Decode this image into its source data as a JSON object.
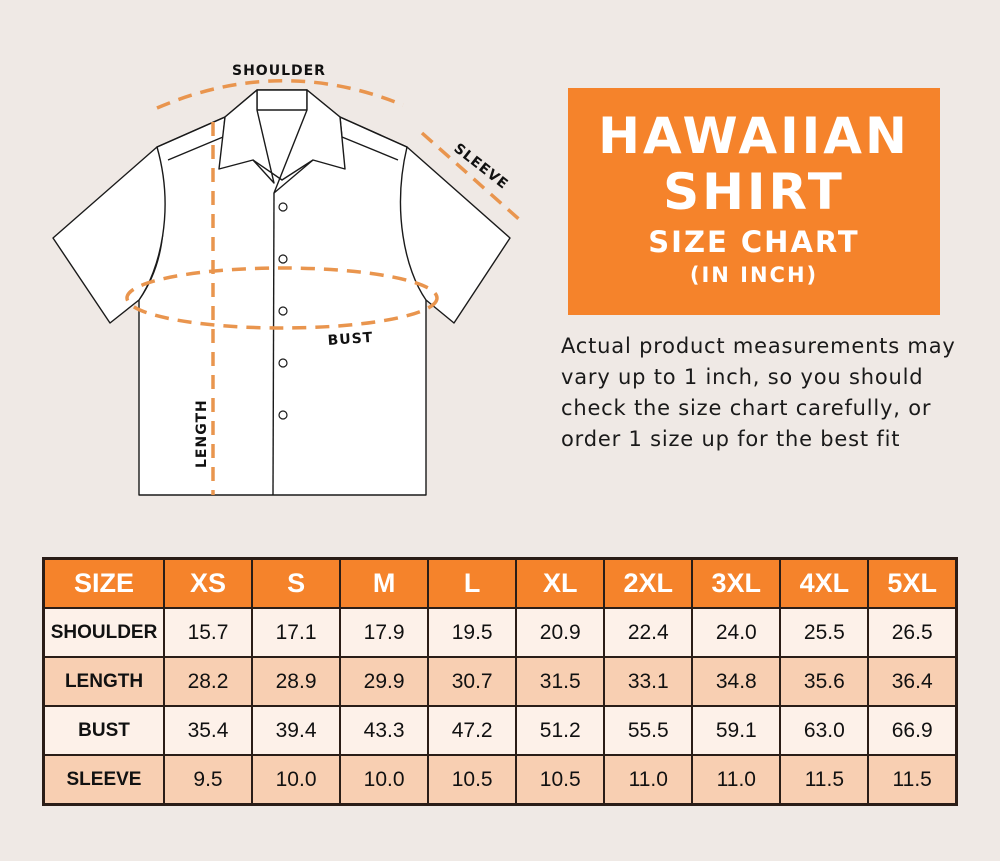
{
  "diagram": {
    "labels": {
      "shoulder": "SHOULDER",
      "sleeve": "SLEEVE",
      "bust": "BUST",
      "length": "LENGTH"
    },
    "colors": {
      "dash": "#e9954e",
      "outline": "#1a1a1a",
      "fill": "#ffffff"
    }
  },
  "title": {
    "line1": "HAWAIIAN",
    "line2": "SHIRT",
    "line3": "SIZE CHART",
    "line4": "(IN INCH)"
  },
  "note": "Actual product measurements may vary up to 1 inch, so you should check the size chart carefully, or order 1 size up for the best fit",
  "colors": {
    "accent": "#f5832b",
    "background": "#efe9e5",
    "row_light": "#fdf1e9",
    "row_dark": "#f8cfb2"
  },
  "table": {
    "headers": [
      "SIZE",
      "XS",
      "S",
      "M",
      "L",
      "XL",
      "2XL",
      "3XL",
      "4XL",
      "5XL"
    ],
    "rows": [
      {
        "label": "SHOULDER",
        "values": [
          "15.7",
          "17.1",
          "17.9",
          "19.5",
          "20.9",
          "22.4",
          "24.0",
          "25.5",
          "26.5"
        ]
      },
      {
        "label": "LENGTH",
        "values": [
          "28.2",
          "28.9",
          "29.9",
          "30.7",
          "31.5",
          "33.1",
          "34.8",
          "35.6",
          "36.4"
        ]
      },
      {
        "label": "BUST",
        "values": [
          "35.4",
          "39.4",
          "43.3",
          "47.2",
          "51.2",
          "55.5",
          "59.1",
          "63.0",
          "66.9"
        ]
      },
      {
        "label": "SLEEVE",
        "values": [
          "9.5",
          "10.0",
          "10.0",
          "10.5",
          "10.5",
          "11.0",
          "11.0",
          "11.5",
          "11.5"
        ]
      }
    ]
  }
}
